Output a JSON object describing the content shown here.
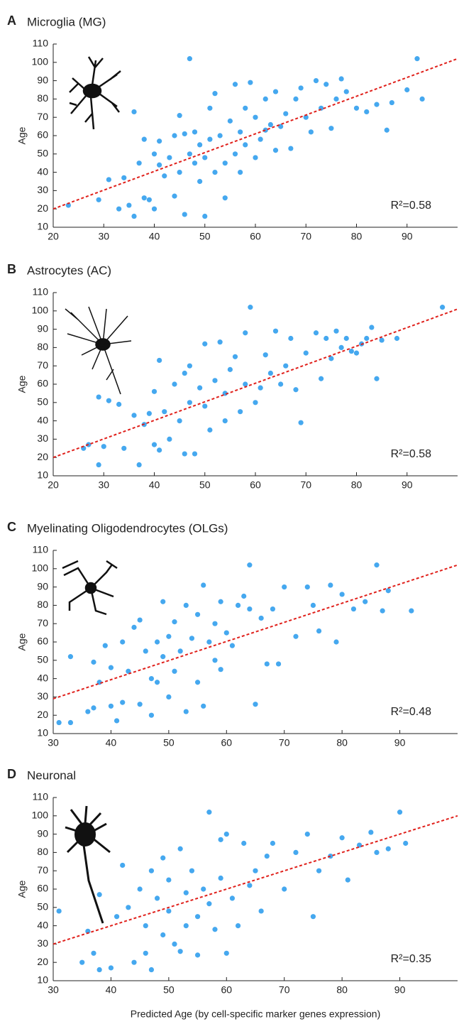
{
  "chart_data": [
    {
      "type": "scatter",
      "panel_label": "A",
      "title": "Microglia (MG)",
      "ylabel": "Age",
      "annotation": "R²=0.58",
      "xlim": [
        20,
        100
      ],
      "ylim": [
        10,
        110
      ],
      "xticks": [
        20,
        30,
        40,
        50,
        60,
        70,
        80,
        90
      ],
      "yticks": [
        10,
        20,
        30,
        40,
        50,
        60,
        70,
        80,
        90,
        100,
        110
      ],
      "color": "#45a8ef",
      "x": [
        23,
        29,
        31,
        33,
        34,
        35,
        36,
        36,
        37,
        38,
        38,
        39,
        40,
        40,
        41,
        41,
        42,
        43,
        44,
        44,
        45,
        45,
        46,
        46,
        47,
        47,
        48,
        48,
        49,
        49,
        50,
        50,
        51,
        51,
        52,
        52,
        53,
        54,
        54,
        55,
        56,
        56,
        57,
        57,
        58,
        58,
        59,
        60,
        60,
        61,
        62,
        62,
        63,
        64,
        64,
        65,
        66,
        67,
        68,
        69,
        70,
        71,
        72,
        73,
        74,
        75,
        76,
        77,
        78,
        80,
        82,
        84,
        86,
        87,
        90,
        92,
        93
      ],
      "values": [
        22,
        25,
        36,
        20,
        37,
        22,
        73,
        16,
        45,
        58,
        26,
        25,
        50,
        20,
        44,
        57,
        38,
        48,
        60,
        27,
        71,
        40,
        61,
        17,
        102,
        50,
        45,
        62,
        35,
        55,
        16,
        48,
        58,
        75,
        40,
        83,
        60,
        26,
        45,
        68,
        50,
        88,
        40,
        62,
        55,
        75,
        89,
        48,
        70,
        58,
        63,
        80,
        66,
        52,
        84,
        65,
        72,
        53,
        80,
        86,
        70,
        62,
        90,
        75,
        88,
        64,
        80,
        91,
        84,
        75,
        73,
        77,
        63,
        78,
        85,
        102,
        80
      ],
      "fit_line": {
        "x": [
          20,
          100
        ],
        "values": [
          20,
          102
        ],
        "color": "#e0201b"
      }
    },
    {
      "type": "scatter",
      "panel_label": "B",
      "title": "Astrocytes (AC)",
      "ylabel": "Age",
      "annotation": "R²=0.58",
      "xlim": [
        20,
        100
      ],
      "ylim": [
        10,
        110
      ],
      "xticks": [
        20,
        30,
        40,
        50,
        60,
        70,
        80,
        90
      ],
      "yticks": [
        10,
        20,
        30,
        40,
        50,
        60,
        70,
        80,
        90,
        100,
        110
      ],
      "color": "#45a8ef",
      "x": [
        26,
        27,
        29,
        29,
        30,
        31,
        33,
        34,
        36,
        37,
        38,
        39,
        40,
        40,
        41,
        41,
        42,
        43,
        44,
        45,
        46,
        46,
        47,
        47,
        48,
        49,
        50,
        50,
        51,
        52,
        53,
        54,
        54,
        55,
        56,
        57,
        58,
        58,
        59,
        60,
        61,
        62,
        63,
        64,
        65,
        66,
        67,
        68,
        69,
        70,
        72,
        73,
        74,
        75,
        76,
        77,
        78,
        79,
        80,
        81,
        82,
        83,
        84,
        85,
        88,
        97
      ],
      "values": [
        25,
        27,
        53,
        16,
        26,
        51,
        49,
        25,
        43,
        16,
        38,
        44,
        56,
        27,
        73,
        24,
        45,
        30,
        60,
        40,
        66,
        22,
        70,
        50,
        22,
        58,
        48,
        82,
        35,
        62,
        83,
        40,
        55,
        68,
        75,
        45,
        60,
        88,
        102,
        50,
        58,
        76,
        66,
        89,
        60,
        70,
        85,
        57,
        39,
        77,
        88,
        63,
        85,
        74,
        89,
        80,
        85,
        78,
        77,
        82,
        85,
        91,
        63,
        84,
        85,
        102
      ],
      "fit_line": {
        "x": [
          20,
          100
        ],
        "values": [
          20,
          101
        ],
        "color": "#e0201b"
      }
    },
    {
      "type": "scatter",
      "panel_label": "C",
      "title": "Myelinating Oligodendrocytes (OLGs)",
      "ylabel": "Age",
      "annotation": "R²=0.48",
      "xlim": [
        30,
        100
      ],
      "ylim": [
        10,
        110
      ],
      "xticks": [
        30,
        40,
        50,
        60,
        70,
        80,
        90
      ],
      "yticks": [
        10,
        20,
        30,
        40,
        50,
        60,
        70,
        80,
        90,
        100,
        110
      ],
      "color": "#45a8ef",
      "x": [
        31,
        33,
        33,
        36,
        37,
        37,
        38,
        39,
        40,
        40,
        41,
        42,
        42,
        43,
        44,
        45,
        45,
        46,
        47,
        47,
        48,
        48,
        49,
        49,
        50,
        50,
        51,
        51,
        52,
        53,
        53,
        54,
        55,
        55,
        56,
        56,
        57,
        58,
        58,
        59,
        59,
        60,
        61,
        62,
        63,
        64,
        64,
        65,
        66,
        67,
        68,
        69,
        70,
        72,
        74,
        75,
        76,
        78,
        79,
        80,
        82,
        84,
        86,
        87,
        88,
        92
      ],
      "values": [
        16,
        52,
        16,
        22,
        49,
        24,
        38,
        58,
        25,
        46,
        17,
        60,
        27,
        44,
        68,
        26,
        72,
        55,
        20,
        40,
        60,
        38,
        82,
        52,
        30,
        63,
        44,
        71,
        55,
        22,
        80,
        62,
        38,
        75,
        25,
        91,
        60,
        50,
        70,
        45,
        82,
        65,
        58,
        80,
        85,
        102,
        78,
        26,
        73,
        48,
        78,
        48,
        90,
        63,
        90,
        80,
        66,
        91,
        60,
        86,
        78,
        82,
        102,
        77,
        88,
        77
      ],
      "fit_line": {
        "x": [
          30,
          100
        ],
        "values": [
          29,
          102
        ],
        "color": "#e0201b"
      }
    },
    {
      "type": "scatter",
      "panel_label": "D",
      "title": "Neuronal",
      "ylabel": "Age",
      "annotation": "R²=0.35",
      "xlabel": "Predicted Age (by cell-specific marker genes expression)",
      "xlim": [
        30,
        100
      ],
      "ylim": [
        10,
        110
      ],
      "xticks": [
        30,
        40,
        50,
        60,
        70,
        80,
        90
      ],
      "yticks": [
        10,
        20,
        30,
        40,
        50,
        60,
        70,
        80,
        90,
        100,
        110
      ],
      "color": "#45a8ef",
      "x": [
        31,
        35,
        36,
        37,
        38,
        38,
        40,
        41,
        42,
        43,
        44,
        45,
        46,
        46,
        47,
        47,
        48,
        49,
        49,
        50,
        50,
        51,
        52,
        52,
        53,
        53,
        54,
        55,
        55,
        56,
        57,
        57,
        58,
        59,
        59,
        60,
        60,
        61,
        62,
        63,
        64,
        65,
        66,
        67,
        68,
        70,
        72,
        74,
        75,
        76,
        78,
        80,
        81,
        83,
        85,
        86,
        88,
        90,
        91
      ],
      "values": [
        48,
        20,
        37,
        25,
        16,
        57,
        17,
        45,
        73,
        50,
        20,
        60,
        25,
        40,
        16,
        70,
        55,
        35,
        77,
        65,
        48,
        30,
        26,
        82,
        58,
        40,
        70,
        45,
        24,
        60,
        102,
        52,
        38,
        87,
        66,
        25,
        90,
        55,
        40,
        85,
        62,
        70,
        48,
        78,
        85,
        60,
        80,
        90,
        45,
        70,
        78,
        88,
        65,
        84,
        91,
        80,
        82,
        102,
        85
      ],
      "fit_line": {
        "x": [
          30,
          100
        ],
        "values": [
          30,
          100
        ],
        "color": "#e0201b"
      }
    }
  ]
}
